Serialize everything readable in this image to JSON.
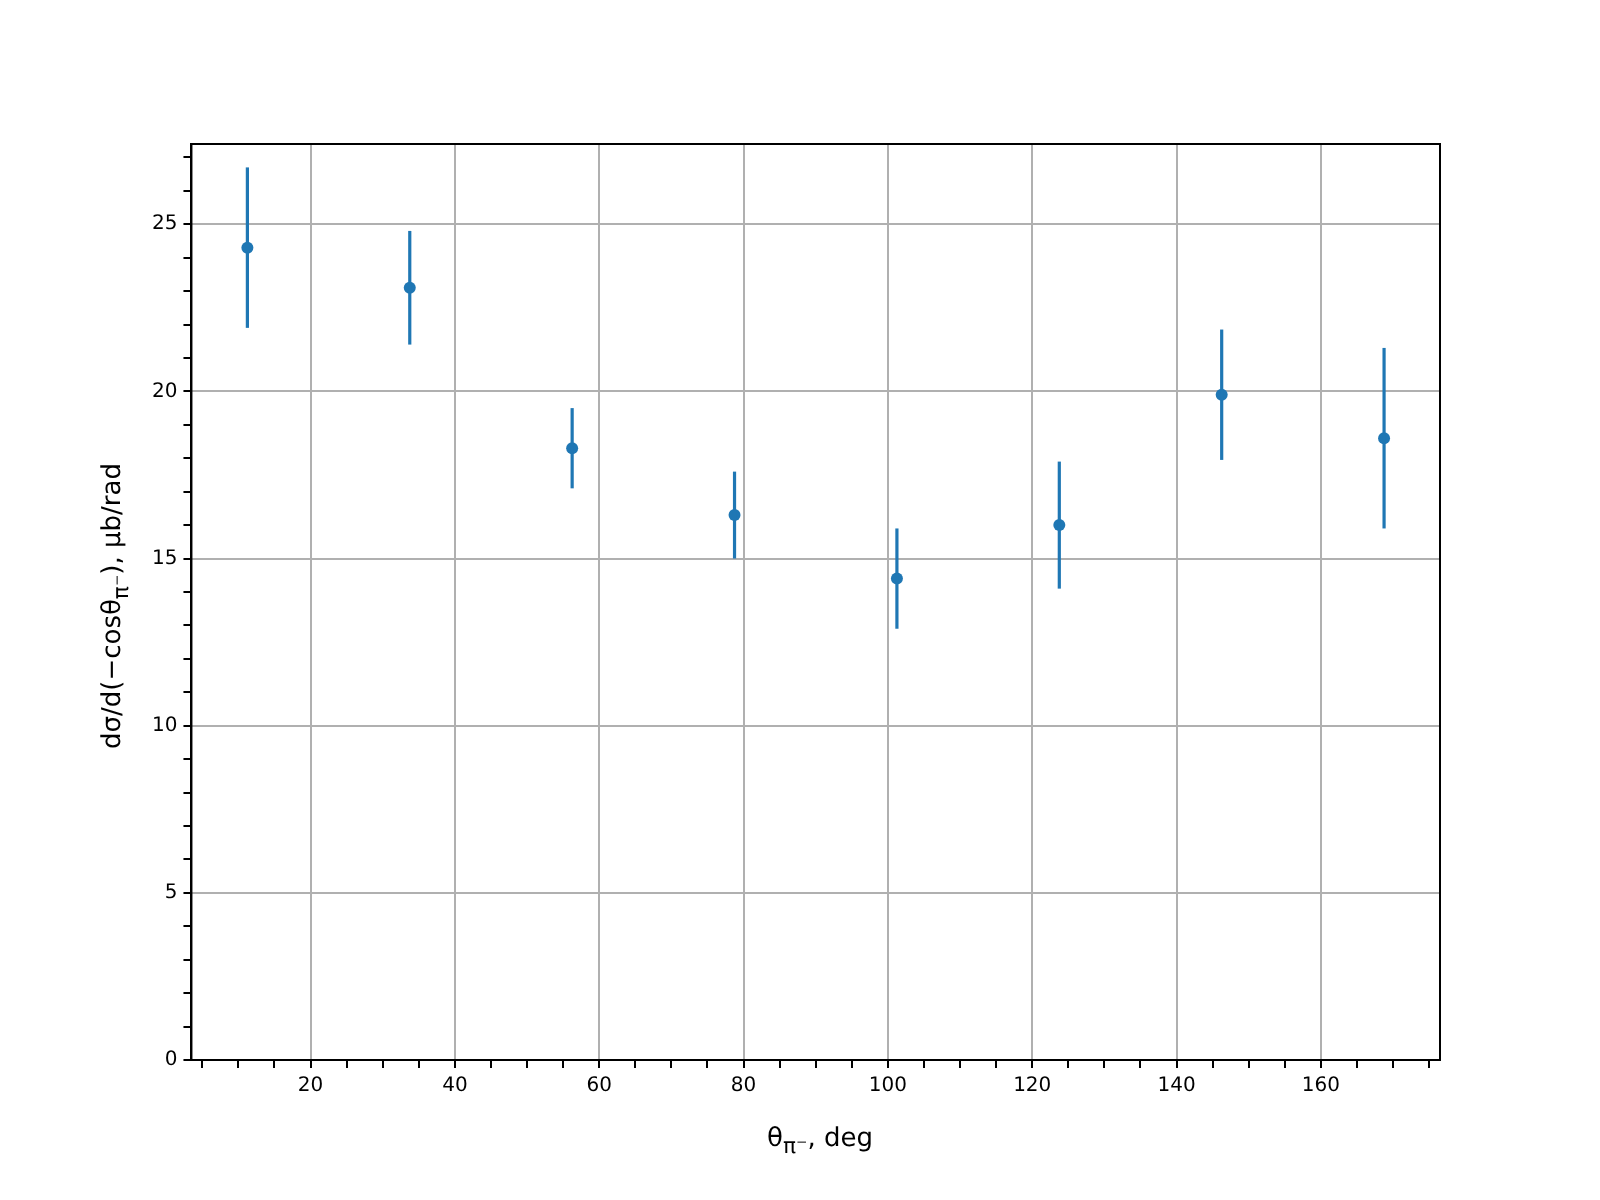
{
  "chart_data": {
    "type": "scatter",
    "xlabel": "θ$_{π⁻}$, deg",
    "ylabel": "dσ/d(−cosθ$_{π⁻}$), μb/rad",
    "x": [
      11.25,
      33.75,
      56.25,
      78.75,
      101.25,
      123.75,
      146.25,
      168.75
    ],
    "series": [
      {
        "color": "#1f77b4",
        "values": [
          24.3,
          23.1,
          18.3,
          16.3,
          14.4,
          16.0,
          19.9,
          18.6
        ],
        "errors": [
          2.4,
          1.7,
          1.2,
          1.3,
          1.5,
          1.9,
          1.95,
          2.7
        ]
      }
    ],
    "xlim": [
      3.5,
      176.5
    ],
    "ylim": [
      0,
      27.4
    ],
    "xticks": [
      {
        "value": 5,
        "label": null
      },
      {
        "value": 10,
        "label": null
      },
      {
        "value": 15,
        "label": null
      },
      20,
      {
        "value": 25,
        "label": null
      },
      {
        "value": 30,
        "label": null
      },
      {
        "value": 35,
        "label": null
      },
      40,
      {
        "value": 45,
        "label": null
      },
      {
        "value": 50,
        "label": null
      },
      {
        "value": 55,
        "label": null
      },
      60,
      {
        "value": 65,
        "label": null
      },
      {
        "value": 70,
        "label": null
      },
      {
        "value": 75,
        "label": null
      },
      80,
      {
        "value": 85,
        "label": null
      },
      {
        "value": 90,
        "label": null
      },
      {
        "value": 95,
        "label": null
      },
      100,
      {
        "value": 105,
        "label": null
      },
      {
        "value": 110,
        "label": null
      },
      {
        "value": 115,
        "label": null
      },
      120,
      {
        "value": 125,
        "label": null
      },
      {
        "value": 130,
        "label": null
      },
      {
        "value": 135,
        "label": null
      },
      140,
      {
        "value": 145,
        "label": null
      },
      {
        "value": 150,
        "label": null
      },
      {
        "value": 155,
        "label": null
      },
      160,
      {
        "value": 165,
        "label": null
      },
      {
        "value": 170,
        "label": null
      },
      {
        "value": 175,
        "label": null
      }
    ],
    "yticks": [
      0,
      {
        "value": 1,
        "label": null
      },
      {
        "value": 2,
        "label": null
      },
      {
        "value": 3,
        "label": null
      },
      {
        "value": 4,
        "label": null
      },
      5,
      {
        "value": 6,
        "label": null
      },
      {
        "value": 7,
        "label": null
      },
      {
        "value": 8,
        "label": null
      },
      {
        "value": 9,
        "label": null
      },
      10,
      {
        "value": 11,
        "label": null
      },
      {
        "value": 12,
        "label": null
      },
      {
        "value": 13,
        "label": null
      },
      {
        "value": 14,
        "label": null
      },
      15,
      {
        "value": 16,
        "label": null
      },
      {
        "value": 17,
        "label": null
      },
      {
        "value": 18,
        "label": null
      },
      {
        "value": 19,
        "label": null
      },
      20,
      {
        "value": 21,
        "label": null
      },
      {
        "value": 22,
        "label": null
      },
      {
        "value": 23,
        "label": null
      },
      {
        "value": 24,
        "label": null
      },
      25,
      {
        "value": 26,
        "label": null
      },
      {
        "value": 27,
        "label": null
      }
    ],
    "grid": true,
    "marker": "circle"
  }
}
